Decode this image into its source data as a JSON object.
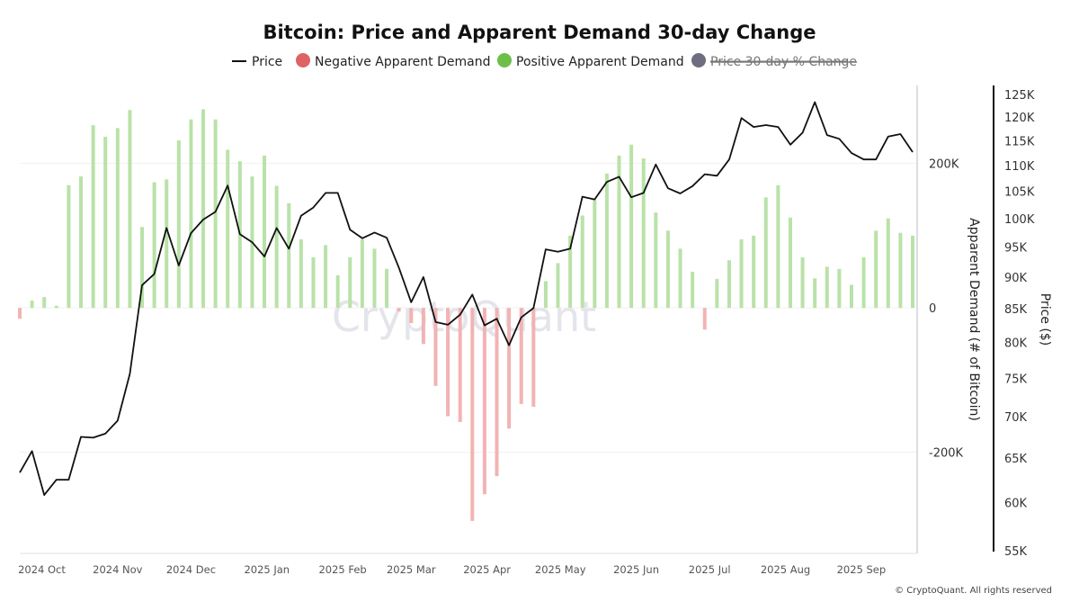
{
  "chart_data": {
    "type": "bar+line",
    "title": "Bitcoin: Price and Apparent Demand 30-day Change",
    "legend": {
      "placement": "top-center",
      "items": [
        {
          "label": "Price",
          "color": "#111111",
          "marker": "line",
          "hidden": false
        },
        {
          "label": "Negative Apparent Demand",
          "color": "#e06363",
          "marker": "dot",
          "hidden": false
        },
        {
          "label": "Positive Apparent Demand",
          "color": "#6cc04a",
          "marker": "dot",
          "hidden": false
        },
        {
          "label": "Price 30-day % Change",
          "color": "#6e6e80",
          "marker": "dot",
          "hidden": true
        }
      ]
    },
    "y_left_label": "Apparent Demand (# of Bitcoin)",
    "y_left_ticks": [
      {
        "value": 200000,
        "label": "200K"
      },
      {
        "value": 0,
        "label": "0"
      },
      {
        "value": -200000,
        "label": "-200K"
      }
    ],
    "y_left_range": [
      -340000,
      308000
    ],
    "y_right_label": "Price ($)",
    "y_right_scale": "log",
    "y_right_range": [
      55000,
      125000
    ],
    "y_right_ticks": [
      {
        "value": 125000,
        "label": "125K"
      },
      {
        "value": 120000,
        "label": "120K"
      },
      {
        "value": 115000,
        "label": "115K"
      },
      {
        "value": 110000,
        "label": "110K"
      },
      {
        "value": 105000,
        "label": "105K"
      },
      {
        "value": 100000,
        "label": "100K"
      },
      {
        "value": 95000,
        "label": "95K"
      },
      {
        "value": 90000,
        "label": "90K"
      },
      {
        "value": 85000,
        "label": "85K"
      },
      {
        "value": 80000,
        "label": "80K"
      },
      {
        "value": 75000,
        "label": "75K"
      },
      {
        "value": 70000,
        "label": "70K"
      },
      {
        "value": 65000,
        "label": "65K"
      },
      {
        "value": 60000,
        "label": "60K"
      },
      {
        "value": 55000,
        "label": "55K"
      }
    ],
    "x_range": [
      "2024-09-22",
      "2025-09-22"
    ],
    "x_ticks": [
      {
        "date": "2024-10-01",
        "label": "2024 Oct"
      },
      {
        "date": "2024-11-01",
        "label": "2024 Nov"
      },
      {
        "date": "2024-12-01",
        "label": "2024 Dec"
      },
      {
        "date": "2025-01-01",
        "label": "2025 Jan"
      },
      {
        "date": "2025-02-01",
        "label": "2025 Feb"
      },
      {
        "date": "2025-03-01",
        "label": "2025 Mar"
      },
      {
        "date": "2025-04-01",
        "label": "2025 Apr"
      },
      {
        "date": "2025-05-01",
        "label": "2025 May"
      },
      {
        "date": "2025-06-01",
        "label": "2025 Jun"
      },
      {
        "date": "2025-07-01",
        "label": "2025 Jul"
      },
      {
        "date": "2025-08-01",
        "label": "2025 Aug"
      },
      {
        "date": "2025-09-01",
        "label": "2025 Sep"
      }
    ],
    "grid": true,
    "x": [
      "2024-09-22",
      "2024-09-27",
      "2024-10-02",
      "2024-10-07",
      "2024-10-12",
      "2024-10-17",
      "2024-10-22",
      "2024-10-27",
      "2024-11-01",
      "2024-11-06",
      "2024-11-11",
      "2024-11-16",
      "2024-11-21",
      "2024-11-26",
      "2024-12-01",
      "2024-12-06",
      "2024-12-11",
      "2024-12-16",
      "2024-12-21",
      "2024-12-26",
      "2024-12-31",
      "2025-01-05",
      "2025-01-10",
      "2025-01-15",
      "2025-01-20",
      "2025-01-25",
      "2025-01-30",
      "2025-02-04",
      "2025-02-09",
      "2025-02-14",
      "2025-02-19",
      "2025-02-24",
      "2025-03-01",
      "2025-03-06",
      "2025-03-11",
      "2025-03-16",
      "2025-03-21",
      "2025-03-26",
      "2025-03-31",
      "2025-04-05",
      "2025-04-10",
      "2025-04-15",
      "2025-04-20",
      "2025-04-25",
      "2025-04-30",
      "2025-05-05",
      "2025-05-10",
      "2025-05-15",
      "2025-05-20",
      "2025-05-25",
      "2025-05-30",
      "2025-06-04",
      "2025-06-09",
      "2025-06-14",
      "2025-06-19",
      "2025-06-24",
      "2025-06-29",
      "2025-07-04",
      "2025-07-09",
      "2025-07-14",
      "2025-07-19",
      "2025-07-24",
      "2025-07-29",
      "2025-08-03",
      "2025-08-08",
      "2025-08-13",
      "2025-08-18",
      "2025-08-23",
      "2025-08-28",
      "2025-09-02",
      "2025-09-07",
      "2025-09-12",
      "2025-09-17",
      "2025-09-22"
    ],
    "series": [
      {
        "name": "Price",
        "type": "line",
        "axis": "right",
        "values": [
          63300,
          65800,
          60800,
          62500,
          62500,
          67500,
          67400,
          67900,
          69500,
          75600,
          88700,
          90500,
          98300,
          91900,
          97400,
          99800,
          101200,
          106100,
          97200,
          95800,
          93400,
          98300,
          94700,
          100500,
          102000,
          104700,
          104700,
          98000,
          96500,
          97500,
          96600,
          91500,
          86000,
          90000,
          83000,
          82600,
          84100,
          87200,
          82500,
          83500,
          79600,
          83700,
          85100,
          94600,
          94200,
          94700,
          104000,
          103500,
          106800,
          107800,
          103900,
          104700,
          110200,
          105600,
          104600,
          106000,
          108300,
          108000,
          111200,
          119800,
          117900,
          118300,
          117900,
          114200,
          116700,
          123300,
          116200,
          115400,
          112500,
          111200,
          111200,
          115900,
          116400,
          112700
        ]
      },
      {
        "name": "Apparent Demand",
        "type": "bar",
        "axis": "left",
        "values": [
          -15000,
          10000,
          15000,
          3000,
          170000,
          182000,
          253000,
          237000,
          249000,
          274000,
          112000,
          174000,
          178000,
          232000,
          261000,
          275000,
          261000,
          219000,
          203000,
          182000,
          211000,
          169000,
          145000,
          95000,
          70000,
          87000,
          45000,
          70000,
          95000,
          82000,
          54000,
          -5000,
          -21000,
          -50000,
          -108000,
          -150000,
          -158000,
          -295000,
          -258000,
          -233000,
          -167000,
          -133000,
          -137000,
          37000,
          62000,
          100000,
          128000,
          150000,
          186000,
          211000,
          226000,
          207000,
          132000,
          107000,
          82000,
          50000,
          -30000,
          40000,
          66000,
          95000,
          100000,
          153000,
          170000,
          125000,
          70000,
          41000,
          57000,
          54000,
          32000,
          70000,
          107000,
          124000,
          104000,
          100000
        ]
      }
    ]
  },
  "watermark": "CryptoQuant",
  "footer": "© CryptoQuant. All rights reserved"
}
